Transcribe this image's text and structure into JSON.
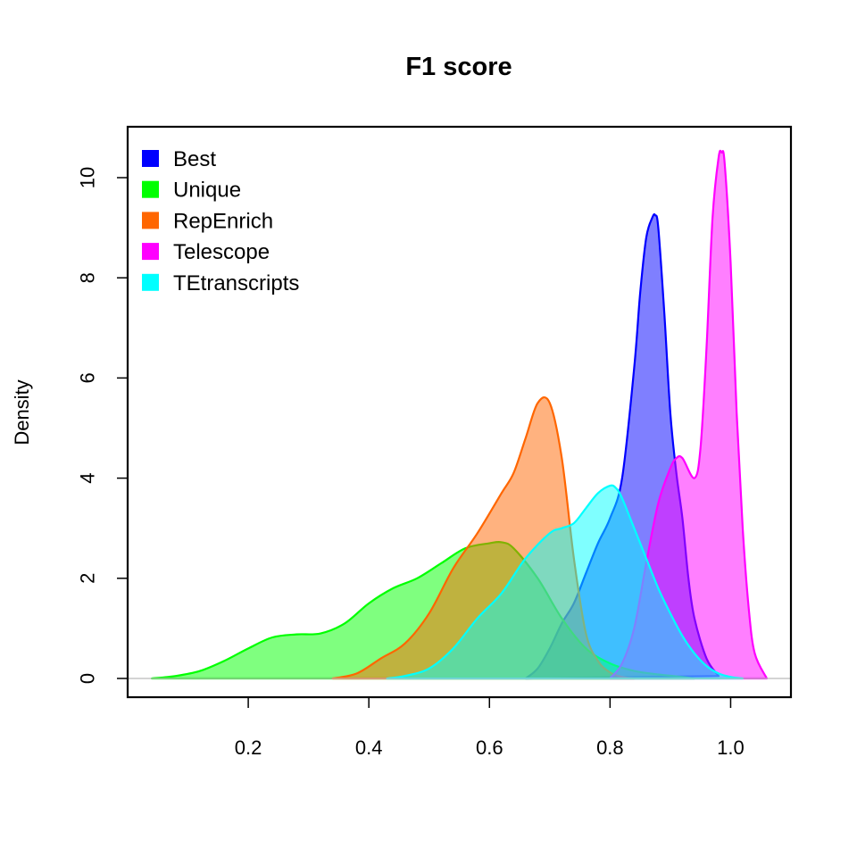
{
  "chart_data": {
    "type": "area",
    "title": "F1 score",
    "xlabel": "",
    "ylabel": "Density",
    "xlim": [
      0.0,
      1.1
    ],
    "ylim": [
      0,
      11
    ],
    "x_ticks": [
      0.2,
      0.4,
      0.6,
      0.8,
      1.0
    ],
    "x_tick_labels": [
      "0.2",
      "0.4",
      "0.6",
      "0.8",
      "1.0"
    ],
    "y_ticks": [
      0,
      2,
      4,
      6,
      8,
      10
    ],
    "y_tick_labels": [
      "0",
      "2",
      "4",
      "6",
      "8",
      "10"
    ],
    "grid": false,
    "legend_position": "top-left",
    "series": [
      {
        "name": "Best",
        "color": "#0000ff",
        "x": [
          0.66,
          0.68,
          0.7,
          0.72,
          0.74,
          0.76,
          0.78,
          0.8,
          0.82,
          0.84,
          0.85,
          0.86,
          0.87,
          0.875,
          0.88,
          0.89,
          0.9,
          0.91,
          0.92,
          0.93,
          0.94,
          0.96,
          0.98
        ],
        "y": [
          0.0,
          0.2,
          0.6,
          1.1,
          1.5,
          2.1,
          2.7,
          3.2,
          4.0,
          6.2,
          7.7,
          8.8,
          9.2,
          9.25,
          9.0,
          7.3,
          5.3,
          4.1,
          3.2,
          2.0,
          1.2,
          0.4,
          0.05
        ]
      },
      {
        "name": "Unique",
        "color": "#00ff00",
        "x": [
          0.04,
          0.08,
          0.12,
          0.16,
          0.2,
          0.24,
          0.28,
          0.32,
          0.36,
          0.4,
          0.44,
          0.48,
          0.52,
          0.56,
          0.6,
          0.62,
          0.64,
          0.68,
          0.72,
          0.76,
          0.8,
          0.84,
          0.88,
          0.92,
          0.94
        ],
        "y": [
          0.0,
          0.05,
          0.15,
          0.35,
          0.6,
          0.82,
          0.88,
          0.9,
          1.1,
          1.5,
          1.8,
          2.0,
          2.3,
          2.6,
          2.7,
          2.72,
          2.6,
          2.0,
          1.2,
          0.6,
          0.3,
          0.15,
          0.08,
          0.03,
          0.0
        ]
      },
      {
        "name": "RepEnrich",
        "color": "#ff6600",
        "x": [
          0.34,
          0.38,
          0.42,
          0.46,
          0.5,
          0.54,
          0.58,
          0.62,
          0.64,
          0.66,
          0.68,
          0.7,
          0.72,
          0.74,
          0.76,
          0.78,
          0.8,
          0.82,
          0.84
        ],
        "y": [
          0.0,
          0.1,
          0.4,
          0.7,
          1.3,
          2.2,
          2.9,
          3.7,
          4.1,
          4.8,
          5.5,
          5.5,
          4.4,
          2.4,
          0.9,
          0.35,
          0.12,
          0.03,
          0.0
        ]
      },
      {
        "name": "Telescope",
        "color": "#ff00ff",
        "x": [
          0.8,
          0.82,
          0.84,
          0.86,
          0.88,
          0.9,
          0.91,
          0.92,
          0.94,
          0.95,
          0.96,
          0.97,
          0.98,
          0.985,
          0.99,
          1.0,
          1.01,
          1.02,
          1.03,
          1.04,
          1.06
        ],
        "y": [
          0.0,
          0.3,
          1.0,
          2.3,
          3.5,
          4.2,
          4.4,
          4.4,
          4.0,
          4.6,
          6.6,
          9.2,
          10.4,
          10.5,
          10.3,
          8.3,
          5.3,
          3.0,
          1.4,
          0.5,
          0.0
        ]
      },
      {
        "name": "TEtranscripts",
        "color": "#00ffff",
        "x": [
          0.43,
          0.46,
          0.5,
          0.54,
          0.58,
          0.62,
          0.66,
          0.7,
          0.72,
          0.74,
          0.76,
          0.78,
          0.8,
          0.81,
          0.82,
          0.84,
          0.86,
          0.88,
          0.9,
          0.92,
          0.94,
          0.96,
          0.98,
          1.0,
          1.02
        ],
        "y": [
          0.0,
          0.05,
          0.2,
          0.6,
          1.2,
          1.7,
          2.4,
          2.9,
          3.0,
          3.1,
          3.4,
          3.7,
          3.85,
          3.8,
          3.6,
          3.0,
          2.4,
          1.8,
          1.3,
          0.85,
          0.5,
          0.25,
          0.1,
          0.03,
          0.0
        ]
      }
    ]
  }
}
